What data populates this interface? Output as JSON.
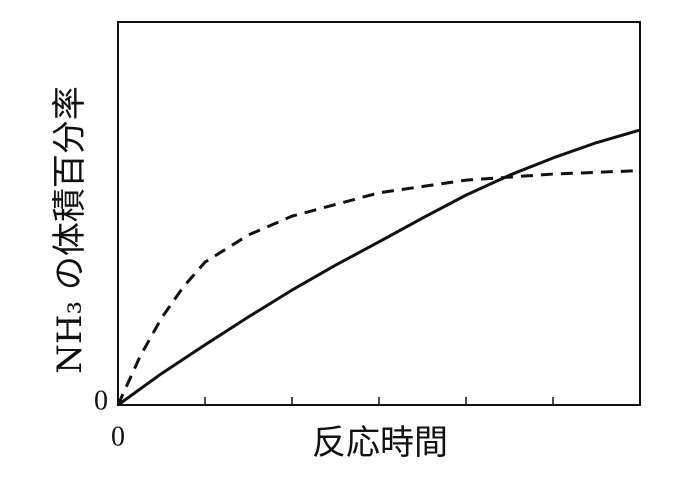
{
  "chart_data": {
    "type": "line",
    "ylabel": "NH₃ の体積百分率",
    "xlabel": "反応時間",
    "xlim": [
      0,
      6
    ],
    "xticks": [
      0
    ],
    "xminor_ticks": [
      1,
      2,
      3,
      4,
      5
    ],
    "ylim": [
      0,
      100
    ],
    "yticks": [
      0
    ],
    "grid": false,
    "series": [
      {
        "color": "#111111",
        "dash": false,
        "x": [
          0,
          0.5,
          1,
          1.5,
          2,
          2.5,
          3,
          3.5,
          4,
          4.5,
          5,
          5.5,
          6
        ],
        "values": [
          0,
          8.2,
          15.7,
          23.0,
          30.0,
          36.5,
          42.6,
          48.8,
          54.8,
          60.0,
          64.5,
          68.5,
          71.8
        ]
      },
      {
        "color": "#111111",
        "dash": true,
        "x": [
          0,
          0.25,
          0.5,
          0.75,
          1,
          1.5,
          2,
          3,
          4,
          5,
          6
        ],
        "values": [
          0,
          12.5,
          22.7,
          30.8,
          37.3,
          44.4,
          49.3,
          55.4,
          58.7,
          60.3,
          61.2
        ]
      }
    ]
  }
}
